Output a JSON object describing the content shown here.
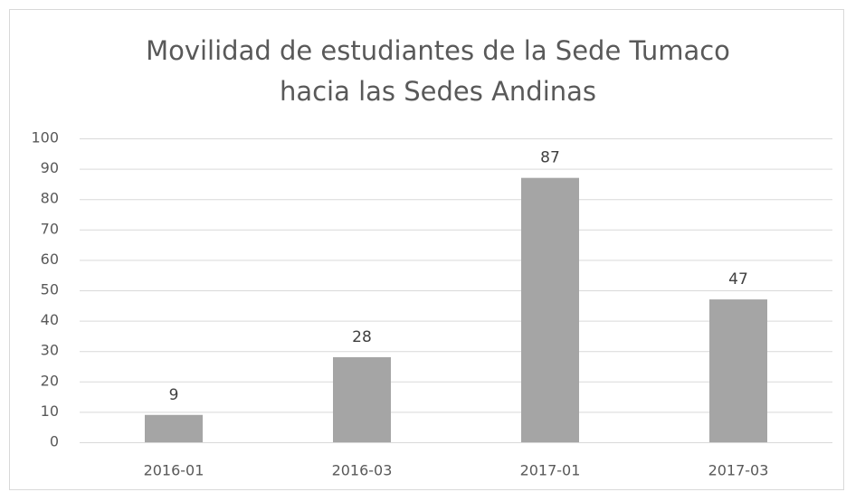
{
  "chart_data": {
    "type": "bar",
    "title": [
      "Movilidad de estudiantes de la Sede Tumaco",
      "hacia las Sedes Andinas"
    ],
    "categories": [
      "2016-01",
      "2016-03",
      "2017-01",
      "2017-03"
    ],
    "values": [
      9,
      28,
      87,
      47
    ],
    "color": "#a5a5a5",
    "ylim": [
      0,
      100
    ],
    "yticks": [
      0,
      10,
      20,
      30,
      40,
      50,
      60,
      70,
      80,
      90,
      100
    ],
    "grid": true
  }
}
